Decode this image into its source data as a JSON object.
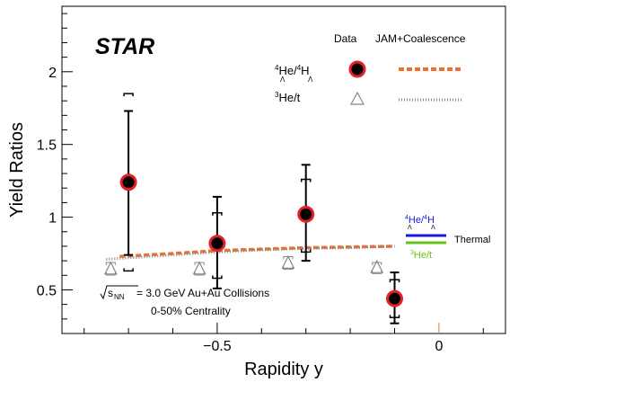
{
  "chart_data": {
    "type": "scatter",
    "title": "STAR",
    "xlabel": "Rapidity y",
    "ylabel": "Yield Ratios",
    "xlim": [
      -0.85,
      0.15
    ],
    "ylim": [
      0.2,
      2.45
    ],
    "x_ticks": [
      {
        "value": -0.5,
        "label": "−0.5"
      },
      {
        "value": 0,
        "label": "0"
      }
    ],
    "y_ticks": [
      {
        "value": 0.5,
        "label": "0.5"
      },
      {
        "value": 1,
        "label": "1"
      },
      {
        "value": 1.5,
        "label": "1.5"
      },
      {
        "value": 2,
        "label": "2"
      }
    ],
    "grid": false,
    "legend_headers": [
      "Data",
      "JAM+Coalescence"
    ],
    "series": [
      {
        "name": "4He/4ΛH",
        "marker": "filled-circle",
        "color": "#000000",
        "edge_color": "#e8202a",
        "points": [
          {
            "x": -0.7,
            "y": 1.24,
            "stat_low": 0.74,
            "stat_high": 1.73,
            "sys_low": 0.63,
            "sys_high": 1.85
          },
          {
            "x": -0.5,
            "y": 0.82,
            "stat_low": 0.51,
            "stat_high": 1.14,
            "sys_low": 0.58,
            "sys_high": 1.03
          },
          {
            "x": -0.3,
            "y": 1.02,
            "stat_low": 0.7,
            "stat_high": 1.36,
            "sys_low": 0.76,
            "sys_high": 1.26
          },
          {
            "x": -0.1,
            "y": 0.44,
            "stat_low": 0.27,
            "stat_high": 0.62,
            "sys_low": 0.31,
            "sys_high": 0.57
          }
        ]
      },
      {
        "name": "3He/t",
        "marker": "open-triangle",
        "color": "#888888",
        "points": [
          {
            "x": -0.74,
            "y": 0.64,
            "sys_low": 0.62,
            "sys_high": 0.67
          },
          {
            "x": -0.54,
            "y": 0.64,
            "sys_low": 0.62,
            "sys_high": 0.67
          },
          {
            "x": -0.34,
            "y": 0.68,
            "sys_low": 0.66,
            "sys_high": 0.71
          },
          {
            "x": -0.14,
            "y": 0.65,
            "sys_low": 0.63,
            "sys_high": 0.67
          }
        ]
      }
    ],
    "model_curves": [
      {
        "name": "JAM+Coalescence 4He/4ΛH",
        "style": "dashed",
        "color": "#f07030",
        "x": [
          -0.72,
          -0.6,
          -0.5,
          -0.4,
          -0.3,
          -0.2,
          -0.1
        ],
        "y": [
          0.73,
          0.75,
          0.77,
          0.78,
          0.79,
          0.795,
          0.8
        ]
      },
      {
        "name": "JAM+Coalescence 3He/t",
        "style": "dotted",
        "color": "#888888",
        "x": [
          -0.75,
          -0.6,
          -0.5,
          -0.4,
          -0.3,
          -0.2,
          -0.1
        ],
        "y": [
          0.71,
          0.74,
          0.76,
          0.775,
          0.785,
          0.79,
          0.8
        ]
      }
    ],
    "thermal": {
      "label": "Thermal",
      "lines": [
        {
          "name": "4He/4ΛH",
          "color": "#1a1ad6",
          "value": 0.74
        },
        {
          "name": "3He/t",
          "color": "#66c21a",
          "value": 0.7
        }
      ]
    },
    "annotations": [
      "= 3.0 GeV Au+Au Collisions",
      "0-50% Centrality"
    ],
    "sqrt_s_label": "s",
    "sqrt_s_sub": "NN"
  }
}
